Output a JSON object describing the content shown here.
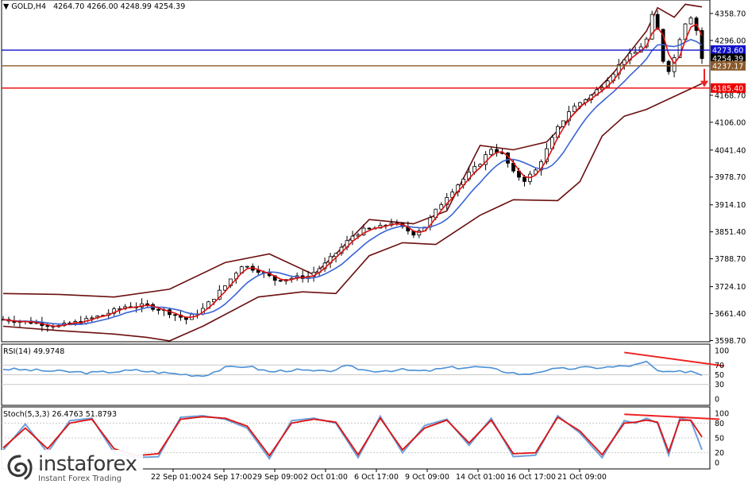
{
  "header": {
    "symbol": "GOLD,H4",
    "ohlc": "4264.70 4266.00 4248.99 4254.39",
    "triangle": "▼"
  },
  "rsi_header": "RSI(14) 49.9748",
  "stoch_header": "Stoch(5,3,3) 26.4763 51.8793",
  "logo": {
    "brand": "instaforex",
    "tagline": "Instant Forex Trading",
    "icon": "swirl-logo-icon"
  },
  "colors": {
    "background": "#ffffff",
    "candle": "#000000",
    "bollinger": "#6b0f0f",
    "ma_fast": "#dd1111",
    "ma_slow": "#3a64d4",
    "rsi_line": "#4a90d6",
    "stoch_main": "#6f9fd8",
    "stoch_signal": "#dd1111",
    "hline_blue": "#1010cc",
    "hline_brown": "#8a5a2b",
    "hline_red": "#ee0000",
    "divergence": "#ee2222"
  },
  "chart_data": [
    {
      "type": "line",
      "name": "price",
      "title": "GOLD,H4",
      "x_labels": [
        "22 Sep 01:00",
        "24 Sep 17:00",
        "29 Sep 09:00",
        "2 Oct 01:00",
        "6 Oct 17:00",
        "9 Oct 09:00",
        "14 Oct 01:00",
        "16 Oct 17:00",
        "21 Oct 09:00"
      ],
      "y_ticks": [
        4358.7,
        4296.0,
        4168.7,
        4106.0,
        4041.4,
        3978.7,
        3914.1,
        3851.4,
        3788.7,
        3724.1,
        3661.4,
        3598.7
      ],
      "ylim": [
        3596.0,
        4390.0
      ],
      "bars": 126,
      "close_path": [
        [
          0,
          3648
        ],
        [
          6,
          3640
        ],
        [
          10,
          3632
        ],
        [
          14,
          3643
        ],
        [
          18,
          3658
        ],
        [
          22,
          3678
        ],
        [
          26,
          3680
        ],
        [
          30,
          3664
        ],
        [
          33,
          3648
        ],
        [
          36,
          3672
        ],
        [
          40,
          3726
        ],
        [
          43,
          3774
        ],
        [
          46,
          3762
        ],
        [
          49,
          3740
        ],
        [
          52,
          3744
        ],
        [
          55,
          3748
        ],
        [
          58,
          3776
        ],
        [
          61,
          3815
        ],
        [
          63,
          3842
        ],
        [
          65,
          3855
        ],
        [
          68,
          3862
        ],
        [
          70,
          3874
        ],
        [
          72,
          3860
        ],
        [
          74,
          3848
        ],
        [
          76,
          3864
        ],
        [
          78,
          3900
        ],
        [
          80,
          3935
        ],
        [
          82,
          3962
        ],
        [
          84,
          3986
        ],
        [
          86,
          4012
        ],
        [
          88,
          4045
        ],
        [
          90,
          4032
        ],
        [
          92,
          3988
        ],
        [
          94,
          3972
        ],
        [
          96,
          3994
        ],
        [
          98,
          4042
        ],
        [
          100,
          4092
        ],
        [
          102,
          4132
        ],
        [
          104,
          4152
        ],
        [
          106,
          4168
        ],
        [
          108,
          4192
        ],
        [
          110,
          4222
        ],
        [
          112,
          4254
        ],
        [
          114,
          4268
        ],
        [
          116,
          4298
        ],
        [
          117,
          4352
        ],
        [
          118,
          4320
        ],
        [
          119,
          4250
        ],
        [
          120,
          4228
        ],
        [
          121,
          4256
        ],
        [
          122,
          4302
        ],
        [
          123,
          4338
        ],
        [
          124,
          4352
        ],
        [
          125,
          4320
        ],
        [
          126,
          4254.39
        ]
      ],
      "hlines": [
        {
          "value": 4273.6,
          "label": "4273.60",
          "color": "#1010cc"
        },
        {
          "value": 4254.39,
          "label": "4254.39",
          "color": "#000000"
        },
        {
          "value": 4237.17,
          "label": "4237.17",
          "color": "#8a5a2b"
        },
        {
          "value": 4185.4,
          "label": "4185.40",
          "color": "#ee0000"
        }
      ],
      "bollinger": {
        "upper": [
          [
            0,
            3708
          ],
          [
            10,
            3706
          ],
          [
            20,
            3700
          ],
          [
            30,
            3718
          ],
          [
            40,
            3780
          ],
          [
            48,
            3800
          ],
          [
            56,
            3752
          ],
          [
            60,
            3800
          ],
          [
            66,
            3880
          ],
          [
            74,
            3870
          ],
          [
            80,
            3900
          ],
          [
            86,
            4052
          ],
          [
            92,
            4042
          ],
          [
            98,
            4060
          ],
          [
            104,
            4140
          ],
          [
            110,
            4220
          ],
          [
            116,
            4318
          ],
          [
            118,
            4372
          ],
          [
            121,
            4350
          ],
          [
            123,
            4380
          ],
          [
            126,
            4374
          ]
        ],
        "lower": [
          [
            0,
            3632
          ],
          [
            10,
            3622
          ],
          [
            20,
            3614
          ],
          [
            26,
            3606
          ],
          [
            30,
            3598
          ],
          [
            36,
            3632
          ],
          [
            46,
            3700
          ],
          [
            54,
            3712
          ],
          [
            60,
            3708
          ],
          [
            66,
            3796
          ],
          [
            72,
            3826
          ],
          [
            78,
            3822
          ],
          [
            86,
            3890
          ],
          [
            92,
            3926
          ],
          [
            100,
            3924
          ],
          [
            104,
            3968
          ],
          [
            108,
            4074
          ],
          [
            112,
            4120
          ],
          [
            116,
            4136
          ],
          [
            120,
            4160
          ],
          [
            126,
            4196
          ]
        ]
      }
    },
    {
      "type": "line",
      "name": "RSI(14)",
      "title": "RSI(14) 49.9748",
      "ylim": [
        0,
        100
      ],
      "y_ticks": [
        100,
        70,
        50,
        30,
        0
      ],
      "levels": [
        70,
        50,
        30
      ],
      "last_value": 49.9748,
      "values_path": [
        [
          0,
          62
        ],
        [
          8,
          58
        ],
        [
          16,
          54
        ],
        [
          24,
          59
        ],
        [
          30,
          53
        ],
        [
          36,
          48
        ],
        [
          40,
          64
        ],
        [
          44,
          68
        ],
        [
          48,
          56
        ],
        [
          52,
          60
        ],
        [
          58,
          56
        ],
        [
          62,
          67
        ],
        [
          66,
          58
        ],
        [
          72,
          60
        ],
        [
          76,
          57
        ],
        [
          80,
          64
        ],
        [
          86,
          66
        ],
        [
          90,
          58
        ],
        [
          94,
          50
        ],
        [
          98,
          60
        ],
        [
          104,
          64
        ],
        [
          110,
          66
        ],
        [
          114,
          70
        ],
        [
          116,
          76
        ],
        [
          118,
          58
        ],
        [
          120,
          54
        ],
        [
          122,
          56
        ],
        [
          124,
          58
        ],
        [
          126,
          50
        ]
      ]
    },
    {
      "type": "line",
      "name": "Stoch(5,3,3)",
      "title": "Stoch(5,3,3) 26.4763 51.8793",
      "ylim": [
        0,
        100
      ],
      "y_ticks": [
        100,
        80,
        50,
        20,
        0
      ],
      "levels": [
        80,
        50,
        20
      ],
      "main_last": 26.4763,
      "signal_last": 51.8793,
      "main_path": [
        [
          0,
          25
        ],
        [
          4,
          78
        ],
        [
          8,
          20
        ],
        [
          12,
          85
        ],
        [
          16,
          90
        ],
        [
          20,
          20
        ],
        [
          24,
          10
        ],
        [
          28,
          12
        ],
        [
          32,
          92
        ],
        [
          36,
          95
        ],
        [
          40,
          88
        ],
        [
          44,
          70
        ],
        [
          48,
          8
        ],
        [
          52,
          85
        ],
        [
          56,
          90
        ],
        [
          60,
          80
        ],
        [
          64,
          10
        ],
        [
          68,
          94
        ],
        [
          72,
          20
        ],
        [
          76,
          75
        ],
        [
          80,
          88
        ],
        [
          84,
          35
        ],
        [
          88,
          90
        ],
        [
          92,
          12
        ],
        [
          96,
          15
        ],
        [
          100,
          95
        ],
        [
          104,
          60
        ],
        [
          108,
          10
        ],
        [
          112,
          85
        ],
        [
          114,
          80
        ],
        [
          116,
          90
        ],
        [
          118,
          80
        ],
        [
          120,
          15
        ],
        [
          122,
          90
        ],
        [
          124,
          85
        ],
        [
          126,
          26
        ]
      ],
      "signal_path": [
        [
          0,
          30
        ],
        [
          4,
          70
        ],
        [
          8,
          28
        ],
        [
          12,
          80
        ],
        [
          16,
          88
        ],
        [
          20,
          28
        ],
        [
          24,
          14
        ],
        [
          28,
          18
        ],
        [
          32,
          88
        ],
        [
          36,
          93
        ],
        [
          40,
          90
        ],
        [
          44,
          74
        ],
        [
          48,
          14
        ],
        [
          52,
          80
        ],
        [
          56,
          88
        ],
        [
          60,
          82
        ],
        [
          64,
          16
        ],
        [
          68,
          90
        ],
        [
          72,
          26
        ],
        [
          76,
          70
        ],
        [
          80,
          86
        ],
        [
          84,
          40
        ],
        [
          88,
          86
        ],
        [
          92,
          18
        ],
        [
          96,
          20
        ],
        [
          100,
          92
        ],
        [
          104,
          64
        ],
        [
          108,
          16
        ],
        [
          112,
          80
        ],
        [
          114,
          82
        ],
        [
          116,
          86
        ],
        [
          118,
          82
        ],
        [
          120,
          22
        ],
        [
          122,
          86
        ],
        [
          124,
          86
        ],
        [
          126,
          52
        ]
      ]
    }
  ]
}
